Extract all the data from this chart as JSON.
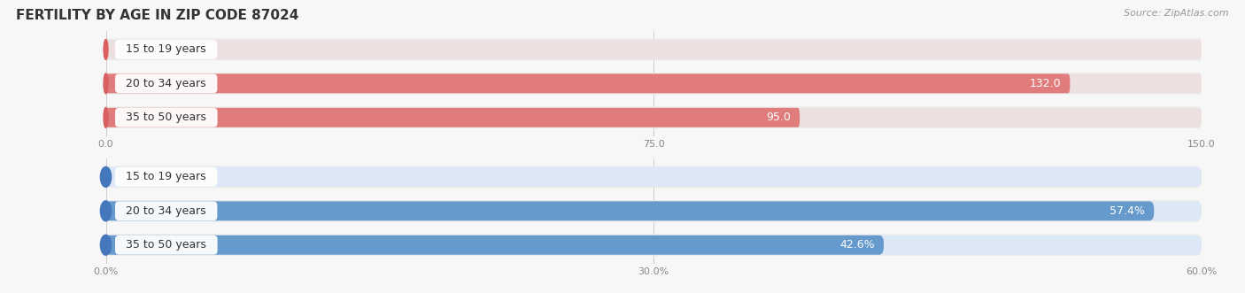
{
  "title": "FERTILITY BY AGE IN ZIP CODE 87024",
  "source": "Source: ZipAtlas.com",
  "top_chart": {
    "categories": [
      "15 to 19 years",
      "20 to 34 years",
      "35 to 50 years"
    ],
    "values": [
      0.0,
      132.0,
      95.0
    ],
    "xlim": [
      0,
      150.0
    ],
    "xticks": [
      0.0,
      75.0,
      150.0
    ],
    "bar_color": "#e07c7c",
    "bar_bg_color": "#ede0e0",
    "circle_color": "#d96060"
  },
  "bottom_chart": {
    "categories": [
      "15 to 19 years",
      "20 to 34 years",
      "35 to 50 years"
    ],
    "values": [
      0.0,
      57.4,
      42.6
    ],
    "xlim": [
      0,
      60.0
    ],
    "xticks": [
      0.0,
      30.0,
      60.0
    ],
    "bar_color": "#6699cc",
    "bar_bg_color": "#dce8f5",
    "circle_color": "#4477bb"
  },
  "label_font_size": 9,
  "category_font_size": 9,
  "title_font_size": 11,
  "source_font_size": 8,
  "bg_color": "#f7f7f7",
  "plot_bg_color": "#f7f7f7",
  "bar_bg_outer": "#ebebeb"
}
